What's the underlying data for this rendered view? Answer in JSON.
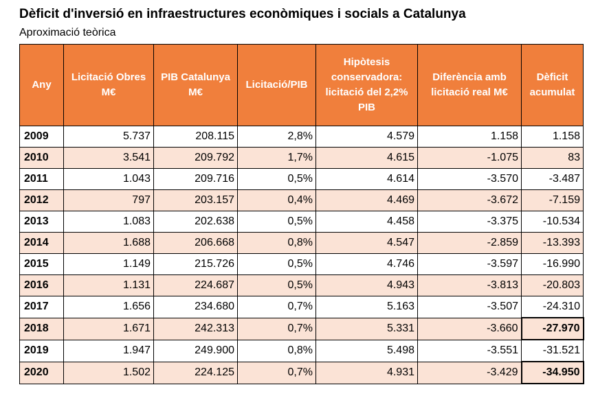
{
  "title": "Dèficit d'inversió en infraestructures econòmiques i socials a Catalunya",
  "subtitle": "Aproximació teòrica",
  "table": {
    "headers": [
      "Any",
      "Licitació Obres M€",
      "PIB Catalunya M€",
      "Licitació/PIB",
      "Hipòtesis conservadora: licitació del 2,2% PIB",
      "Diferència amb licitació real M€",
      "Dèficit acumulat"
    ],
    "rows": [
      [
        "2009",
        "5.737",
        "208.115",
        "2,8%",
        "4.579",
        "1.158",
        "1.158"
      ],
      [
        "2010",
        "3.541",
        "209.792",
        "1,7%",
        "4.615",
        "-1.075",
        "83"
      ],
      [
        "2011",
        "1.043",
        "209.716",
        "0,5%",
        "4.614",
        "-3.570",
        "-3.487"
      ],
      [
        "2012",
        "797",
        "203.157",
        "0,4%",
        "4.469",
        "-3.672",
        "-7.159"
      ],
      [
        "2013",
        "1.083",
        "202.638",
        "0,5%",
        "4.458",
        "-3.375",
        "-10.534"
      ],
      [
        "2014",
        "1.688",
        "206.668",
        "0,8%",
        "4.547",
        "-2.859",
        "-13.393"
      ],
      [
        "2015",
        "1.149",
        "215.726",
        "0,5%",
        "4.746",
        "-3.597",
        "-16.990"
      ],
      [
        "2016",
        "1.131",
        "224.687",
        "0,5%",
        "4.943",
        "-3.813",
        "-20.803"
      ],
      [
        "2017",
        "1.656",
        "234.680",
        "0,7%",
        "5.163",
        "-3.507",
        "-24.310"
      ],
      [
        "2018",
        "1.671",
        "242.313",
        "0,7%",
        "5.331",
        "-3.660",
        "-27.970"
      ],
      [
        "2019",
        "1.947",
        "249.900",
        "0,8%",
        "5.498",
        "-3.551",
        "-31.521"
      ],
      [
        "2020",
        "1.502",
        "224.125",
        "0,7%",
        "4.931",
        "-3.429",
        "-34.950"
      ]
    ],
    "highlighted_cells": [
      {
        "row": 9,
        "col": 6
      },
      {
        "row": 11,
        "col": 6
      }
    ]
  },
  "colors": {
    "header_background": "#f07f3c",
    "header_text": "#ffffff",
    "alternate_row": "#fbe3d6",
    "border": "#000000"
  }
}
